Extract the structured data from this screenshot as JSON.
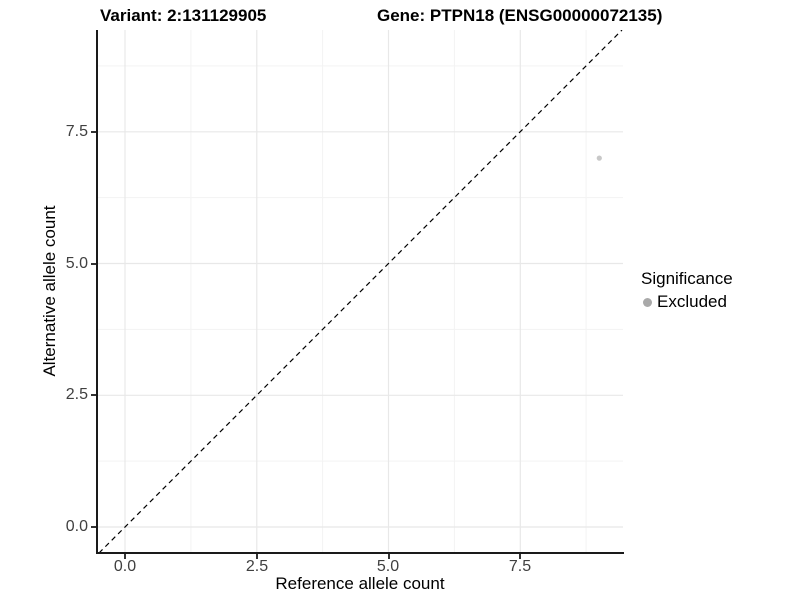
{
  "titles": {
    "variant": "Variant: 2:131129905",
    "gene": "Gene: PTPN18 (ENSG00000072135)"
  },
  "x_axis": {
    "label": "Reference allele count",
    "ticks": [
      "0.0",
      "2.5",
      "5.0",
      "7.5"
    ]
  },
  "y_axis": {
    "label": "Alternative allele count",
    "ticks": [
      "7.5",
      "5.0",
      "2.5",
      "0.0"
    ]
  },
  "legend": {
    "title": "Significance",
    "items": [
      {
        "label": "Excluded",
        "color": "#a9a9a9"
      }
    ]
  },
  "chart_data": {
    "type": "scatter",
    "title": "Variant: 2:131129905 | Gene: PTPN18 (ENSG00000072135)",
    "xlabel": "Reference allele count",
    "ylabel": "Alternative allele count",
    "xlim": [
      -0.53,
      9.45
    ],
    "ylim": [
      -0.49,
      9.43
    ],
    "x_ticks": [
      0.0,
      2.5,
      5.0,
      7.5
    ],
    "y_ticks": [
      0.0,
      2.5,
      5.0,
      7.5
    ],
    "grid": "major and minor gridlines on, light gray",
    "legend_position": "right",
    "series": [
      {
        "name": "Excluded",
        "color": "#c8c8c8",
        "point_radius": 2.6,
        "points": [
          {
            "x": 9,
            "y": 7
          }
        ]
      }
    ],
    "reference_line": {
      "type": "identity y = x",
      "style": "dashed",
      "color": "#000000"
    }
  },
  "colors": {
    "background": "#ffffff",
    "grid_major": "#e8e8e8",
    "grid_minor": "#f3f3f3",
    "axis_line": "#1a1a1a",
    "tick_label": "#404040",
    "point": "#c8c8c8",
    "legend_key": "#a9a9a9"
  }
}
